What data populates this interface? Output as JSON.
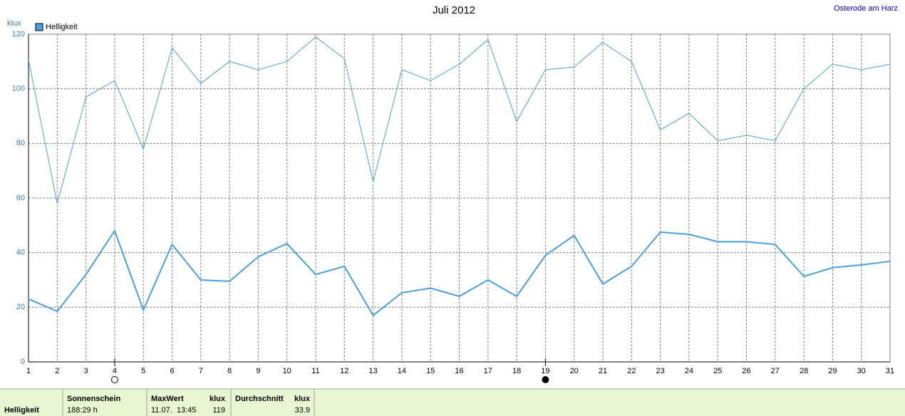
{
  "chart_data": {
    "type": "line",
    "title": "Juli 2012",
    "location": "Osterode am Harz",
    "ylabel": "klux",
    "x": [
      1,
      2,
      3,
      4,
      5,
      6,
      7,
      8,
      9,
      10,
      11,
      12,
      13,
      14,
      15,
      16,
      17,
      18,
      19,
      20,
      21,
      22,
      23,
      24,
      25,
      26,
      27,
      28,
      29,
      30,
      31
    ],
    "series": [
      {
        "name": "Helligkeit",
        "color": "#4a9fe0",
        "width": 1,
        "values": [
          110.6,
          58,
          97,
          103,
          78,
          115,
          102,
          110,
          107,
          110,
          119,
          111,
          66,
          107,
          103,
          109,
          118,
          88,
          107,
          108,
          117,
          110,
          85,
          91,
          81,
          83,
          81,
          100,
          109,
          107,
          109
        ]
      },
      {
        "color": "#4a9fe0",
        "width": 2,
        "values": [
          23,
          18.5,
          32,
          48,
          19,
          43,
          30,
          29.5,
          38.5,
          43.3,
          32,
          35,
          17,
          25.3,
          27,
          24,
          30,
          24,
          39,
          46.3,
          28.5,
          35,
          47.5,
          46.7,
          44,
          44,
          43,
          31.3,
          34.5,
          35.5,
          36.8
        ]
      }
    ],
    "xlim": [
      1,
      31
    ],
    "xticks": [
      1,
      2,
      3,
      4,
      5,
      6,
      7,
      8,
      9,
      10,
      11,
      12,
      13,
      14,
      15,
      16,
      17,
      18,
      19,
      20,
      21,
      22,
      23,
      24,
      25,
      26,
      27,
      28,
      29,
      30,
      31
    ],
    "ylim": [
      0,
      120
    ],
    "yticks": [
      0,
      20,
      40,
      60,
      80,
      100,
      120
    ],
    "grid": true,
    "markers": [
      {
        "x": 4,
        "fill": "#ffffff"
      },
      {
        "x": 19,
        "fill": "#000000"
      }
    ]
  },
  "table": {
    "header": [
      "Sonnenschein",
      "MaxWert",
      "klux",
      "Durchschnitt",
      "klux"
    ],
    "row": [
      "Helligkeit",
      "188:29 h",
      "11.07.  13:45",
      "119",
      "33.9"
    ]
  }
}
